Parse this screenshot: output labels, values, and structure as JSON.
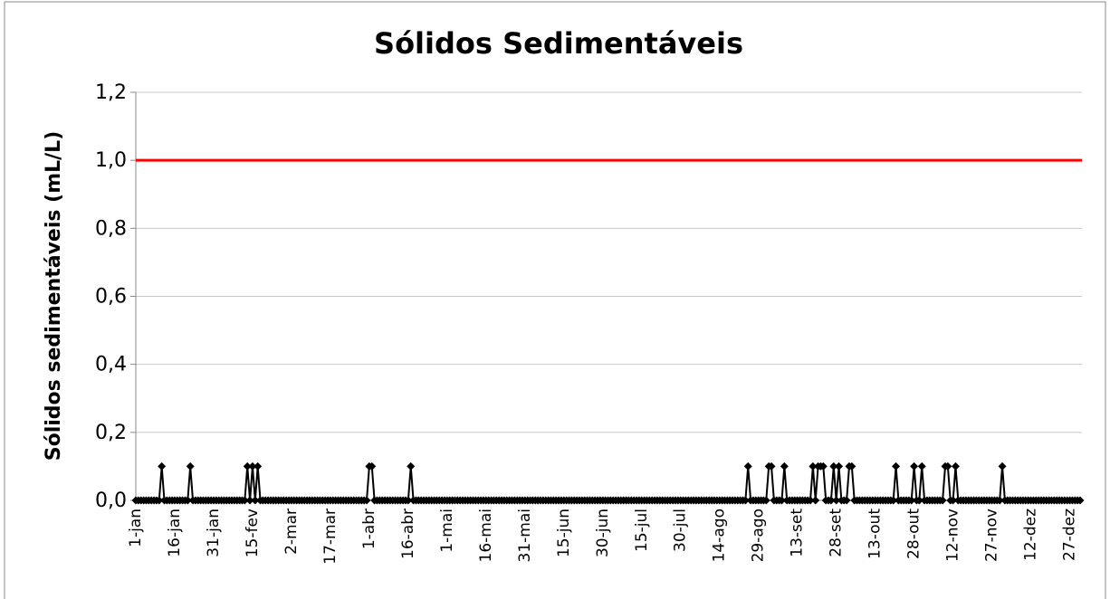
{
  "chart_data": {
    "type": "line",
    "title": "Sólidos Sedimentáveis",
    "y_label": "Sólidos sedimentáveis (mL/L)",
    "ylim": [
      0,
      1.2
    ],
    "yticks": [
      {
        "value": 0,
        "label": "0,0"
      },
      {
        "value": 0.2,
        "label": "0,2"
      },
      {
        "value": 0.4,
        "label": "0,4"
      },
      {
        "value": 0.6,
        "label": "0,6"
      },
      {
        "value": 0.8,
        "label": "0,8"
      },
      {
        "value": 1.0,
        "label": "1,0"
      },
      {
        "value": 1.2,
        "label": "1,2"
      }
    ],
    "grid": true,
    "reference_line": {
      "value": 1.0,
      "color": "#ff0000"
    },
    "categories": [
      "1-jan",
      null,
      null,
      null,
      null,
      null,
      null,
      null,
      null,
      null,
      null,
      null,
      null,
      null,
      null,
      "16-jan",
      null,
      null,
      null,
      null,
      null,
      null,
      null,
      null,
      null,
      null,
      null,
      null,
      null,
      null,
      "31-jan",
      null,
      null,
      null,
      null,
      null,
      null,
      null,
      null,
      null,
      null,
      null,
      null,
      null,
      null,
      "15-fev",
      null,
      null,
      null,
      null,
      null,
      null,
      null,
      null,
      null,
      null,
      null,
      null,
      null,
      null,
      "2-mar",
      null,
      null,
      null,
      null,
      null,
      null,
      null,
      null,
      null,
      null,
      null,
      null,
      null,
      null,
      "17-mar",
      null,
      null,
      null,
      null,
      null,
      null,
      null,
      null,
      null,
      null,
      null,
      null,
      null,
      null,
      "1-abr",
      null,
      null,
      null,
      null,
      null,
      null,
      null,
      null,
      null,
      null,
      null,
      null,
      null,
      null,
      "16-abr",
      null,
      null,
      null,
      null,
      null,
      null,
      null,
      null,
      null,
      null,
      null,
      null,
      null,
      null,
      "1-mai",
      null,
      null,
      null,
      null,
      null,
      null,
      null,
      null,
      null,
      null,
      null,
      null,
      null,
      null,
      "16-mai",
      null,
      null,
      null,
      null,
      null,
      null,
      null,
      null,
      null,
      null,
      null,
      null,
      null,
      null,
      "31-mai",
      null,
      null,
      null,
      null,
      null,
      null,
      null,
      null,
      null,
      null,
      null,
      null,
      null,
      null,
      "15-jun",
      null,
      null,
      null,
      null,
      null,
      null,
      null,
      null,
      null,
      null,
      null,
      null,
      null,
      null,
      "30-jun",
      null,
      null,
      null,
      null,
      null,
      null,
      null,
      null,
      null,
      null,
      null,
      null,
      null,
      null,
      "15-jul",
      null,
      null,
      null,
      null,
      null,
      null,
      null,
      null,
      null,
      null,
      null,
      null,
      null,
      null,
      "30-jul",
      null,
      null,
      null,
      null,
      null,
      null,
      null,
      null,
      null,
      null,
      null,
      null,
      null,
      null,
      "14-ago",
      null,
      null,
      null,
      null,
      null,
      null,
      null,
      null,
      null,
      null,
      null,
      null,
      null,
      null,
      "29-ago",
      null,
      null,
      null,
      null,
      null,
      null,
      null,
      null,
      null,
      null,
      null,
      null,
      null,
      null,
      "13-set",
      null,
      null,
      null,
      null,
      null,
      null,
      null,
      null,
      null,
      null,
      null,
      null,
      null,
      null,
      "28-set",
      null,
      null,
      null,
      null,
      null,
      null,
      null,
      null,
      null,
      null,
      null,
      null,
      null,
      null,
      "13-out",
      null,
      null,
      null,
      null,
      null,
      null,
      null,
      null,
      null,
      null,
      null,
      null,
      null,
      null,
      "28-out",
      null,
      null,
      null,
      null,
      null,
      null,
      null,
      null,
      null,
      null,
      null,
      null,
      null,
      null,
      "12-nov",
      null,
      null,
      null,
      null,
      null,
      null,
      null,
      null,
      null,
      null,
      null,
      null,
      null,
      null,
      "27-nov",
      null,
      null,
      null,
      null,
      null,
      null,
      null,
      null,
      null,
      null,
      null,
      null,
      null,
      null,
      "12-dez",
      null,
      null,
      null,
      null,
      null,
      null,
      null,
      null,
      null,
      null,
      null,
      null,
      null,
      null,
      "27-dez",
      null,
      null,
      null,
      null
    ],
    "color": "#000000",
    "values": [
      0,
      0,
      0,
      0,
      0,
      0,
      0,
      0,
      0,
      0,
      0.1,
      0,
      0,
      0,
      0,
      0,
      0,
      0,
      0,
      0,
      0,
      0.1,
      0,
      0,
      0,
      0,
      0,
      0,
      0,
      0,
      0,
      0,
      0,
      0,
      0,
      0,
      0,
      0,
      0,
      0,
      0,
      0,
      0,
      0.1,
      0,
      0.1,
      0,
      0.1,
      0,
      0,
      0,
      0,
      0,
      0,
      0,
      0,
      0,
      0,
      0,
      0,
      0,
      0,
      0,
      0,
      0,
      0,
      0,
      0,
      0,
      0,
      0,
      0,
      0,
      0,
      0,
      0,
      0,
      0,
      0,
      0,
      0,
      0,
      0,
      0,
      0,
      0,
      0,
      0,
      0,
      0,
      0.1,
      0.1,
      0,
      0,
      0,
      0,
      0,
      0,
      0,
      0,
      0,
      0,
      0,
      0,
      0,
      0,
      0.1,
      0,
      0,
      0,
      0,
      0,
      0,
      0,
      0,
      0,
      0,
      0,
      0,
      0,
      0,
      0,
      0,
      0,
      0,
      0,
      0,
      0,
      0,
      0,
      0,
      0,
      0,
      0,
      0,
      0,
      0,
      0,
      0,
      0,
      0,
      0,
      0,
      0,
      0,
      0,
      0,
      0,
      0,
      0,
      0,
      0,
      0,
      0,
      0,
      0,
      0,
      0,
      0,
      0,
      0,
      0,
      0,
      0,
      0,
      0,
      0,
      0,
      0,
      0,
      0,
      0,
      0,
      0,
      0,
      0,
      0,
      0,
      0,
      0,
      0,
      0,
      0,
      0,
      0,
      0,
      0,
      0,
      0,
      0,
      0,
      0,
      0,
      0,
      0,
      0,
      0,
      0,
      0,
      0,
      0,
      0,
      0,
      0,
      0,
      0,
      0,
      0,
      0,
      0,
      0,
      0,
      0,
      0,
      0,
      0,
      0,
      0,
      0,
      0,
      0,
      0,
      0,
      0,
      0,
      0,
      0,
      0,
      0,
      0,
      0,
      0,
      0,
      0,
      0,
      0,
      0.1,
      0,
      0,
      0,
      0,
      0,
      0,
      0,
      0.1,
      0.1,
      0,
      0,
      0,
      0,
      0.1,
      0,
      0,
      0,
      0,
      0,
      0,
      0,
      0,
      0,
      0,
      0.1,
      0,
      0.1,
      0.1,
      0.1,
      0,
      0,
      0,
      0.1,
      0,
      0.1,
      0,
      0,
      0,
      0.1,
      0.1,
      0,
      0,
      0,
      0,
      0,
      0,
      0,
      0,
      0,
      0,
      0,
      0,
      0,
      0,
      0,
      0,
      0.1,
      0,
      0,
      0,
      0,
      0,
      0,
      0.1,
      0,
      0,
      0.1,
      0,
      0,
      0,
      0,
      0,
      0,
      0,
      0,
      0.1,
      0.1,
      0,
      0,
      0.1,
      0,
      0,
      0,
      0,
      0,
      0,
      0,
      0,
      0,
      0,
      0,
      0,
      0,
      0,
      0,
      0,
      0,
      0.1,
      0,
      0,
      0,
      0,
      0,
      0,
      0,
      0,
      0,
      0,
      0,
      0,
      0,
      0,
      0,
      0,
      0,
      0,
      0,
      0,
      0,
      0,
      0,
      0,
      0,
      0,
      0,
      0,
      0,
      0
    ]
  }
}
